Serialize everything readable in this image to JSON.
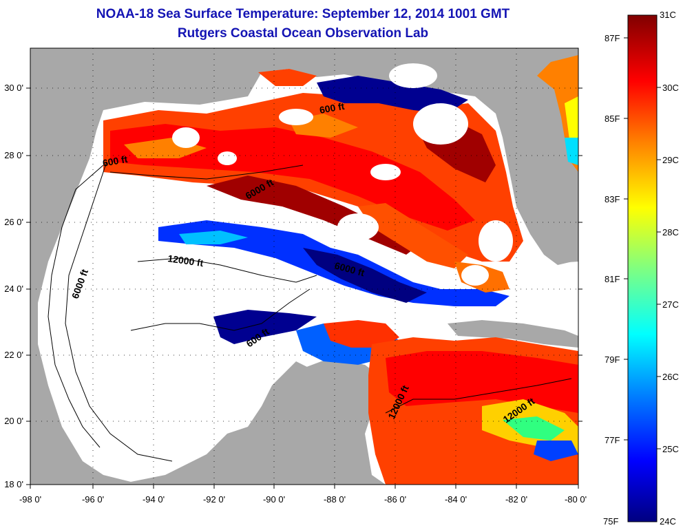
{
  "title": {
    "line1": "NOAA-18 Sea Surface Temperature:  September 12, 2014 1001 GMT",
    "line2": "Rutgers Coastal Ocean Observation Lab"
  },
  "axes": {
    "longitude_ticks": [
      "-98 0'",
      "-96 0'",
      "-94 0'",
      "-92 0'",
      "-90 0'",
      "-88 0'",
      "-86 0'",
      "-84 0'",
      "-82 0'",
      "-80 0'"
    ],
    "latitude_ticks": [
      "30 0'",
      "28 0'",
      "26 0'",
      "24 0'",
      "22 0'",
      "20 0'",
      "18 0'"
    ]
  },
  "contours": [
    {
      "label": "600 ft"
    },
    {
      "label": "6000 ft"
    },
    {
      "label": "12000 ft"
    },
    {
      "label": "600 ft"
    },
    {
      "label": "6000 ft"
    },
    {
      "label": "6000 ft"
    },
    {
      "label": "600 ft"
    },
    {
      "label": "12000 ft"
    },
    {
      "label": "12000 ft"
    }
  ],
  "colorbar": {
    "celsius": [
      "31C",
      "30C",
      "29C",
      "28C",
      "27C",
      "26C",
      "25C",
      "24C"
    ],
    "fahrenheit": [
      "87F",
      "85F",
      "83F",
      "81F",
      "79F",
      "77F",
      "75F"
    ],
    "colors": [
      "#000080",
      "#0000ff",
      "#0080ff",
      "#00ffff",
      "#80ff80",
      "#ffff00",
      "#ff8000",
      "#ff0000",
      "#800000"
    ]
  },
  "colors": {
    "land": "#a8a8a8",
    "cloud": "#ffffff",
    "title": "#1414b4"
  }
}
